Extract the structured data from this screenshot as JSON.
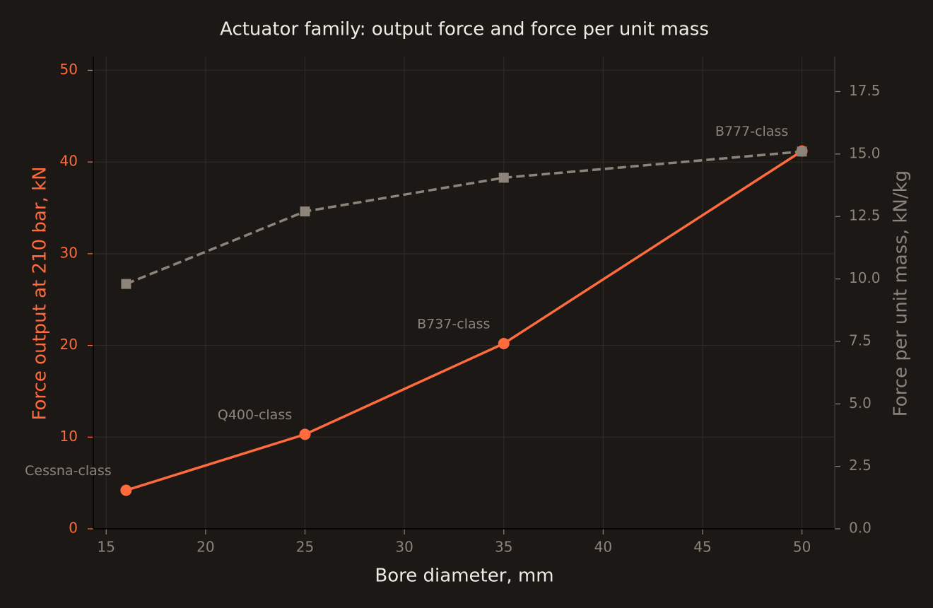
{
  "chart_data": {
    "type": "line",
    "title": "Actuator family: output force and force per unit mass",
    "x_label": "Bore diameter, mm",
    "y_label": "Force output at 210 bar, kN",
    "y2_label": "Force per unit mass, kN/kg",
    "x": [
      16,
      25,
      35,
      50
    ],
    "annotations": [
      "Cessna-class",
      "Q400-class",
      "B737-class",
      "B777-class"
    ],
    "series": [
      {
        "name": "Force output",
        "color": "#ff6b3d",
        "values": [
          4.2,
          10.3,
          20.2,
          41.2
        ],
        "axis": "y",
        "dashed": false,
        "marker": "circle"
      },
      {
        "name": "Force per unit mass",
        "color": "#8c8479",
        "values": [
          9.8,
          12.7,
          14.05,
          15.1
        ],
        "axis": "y2",
        "dashed": true,
        "marker": "square"
      }
    ],
    "xlim": [
      14.35,
      51.65
    ],
    "xticks": [
      15,
      20,
      25,
      30,
      35,
      40,
      45,
      50
    ],
    "ylim": [
      0,
      51.5
    ],
    "yticks": [
      0,
      10,
      20,
      30,
      40,
      50
    ],
    "y2lim": [
      0,
      18.9
    ],
    "y2ticks": [
      {
        "value": 0,
        "label": "0.0"
      },
      2.5,
      {
        "value": 5,
        "label": "5.0"
      },
      7.5,
      {
        "value": 10,
        "label": "10.0"
      },
      12.5,
      {
        "value": 15,
        "label": "15.0"
      },
      17.5
    ],
    "grid": true
  }
}
